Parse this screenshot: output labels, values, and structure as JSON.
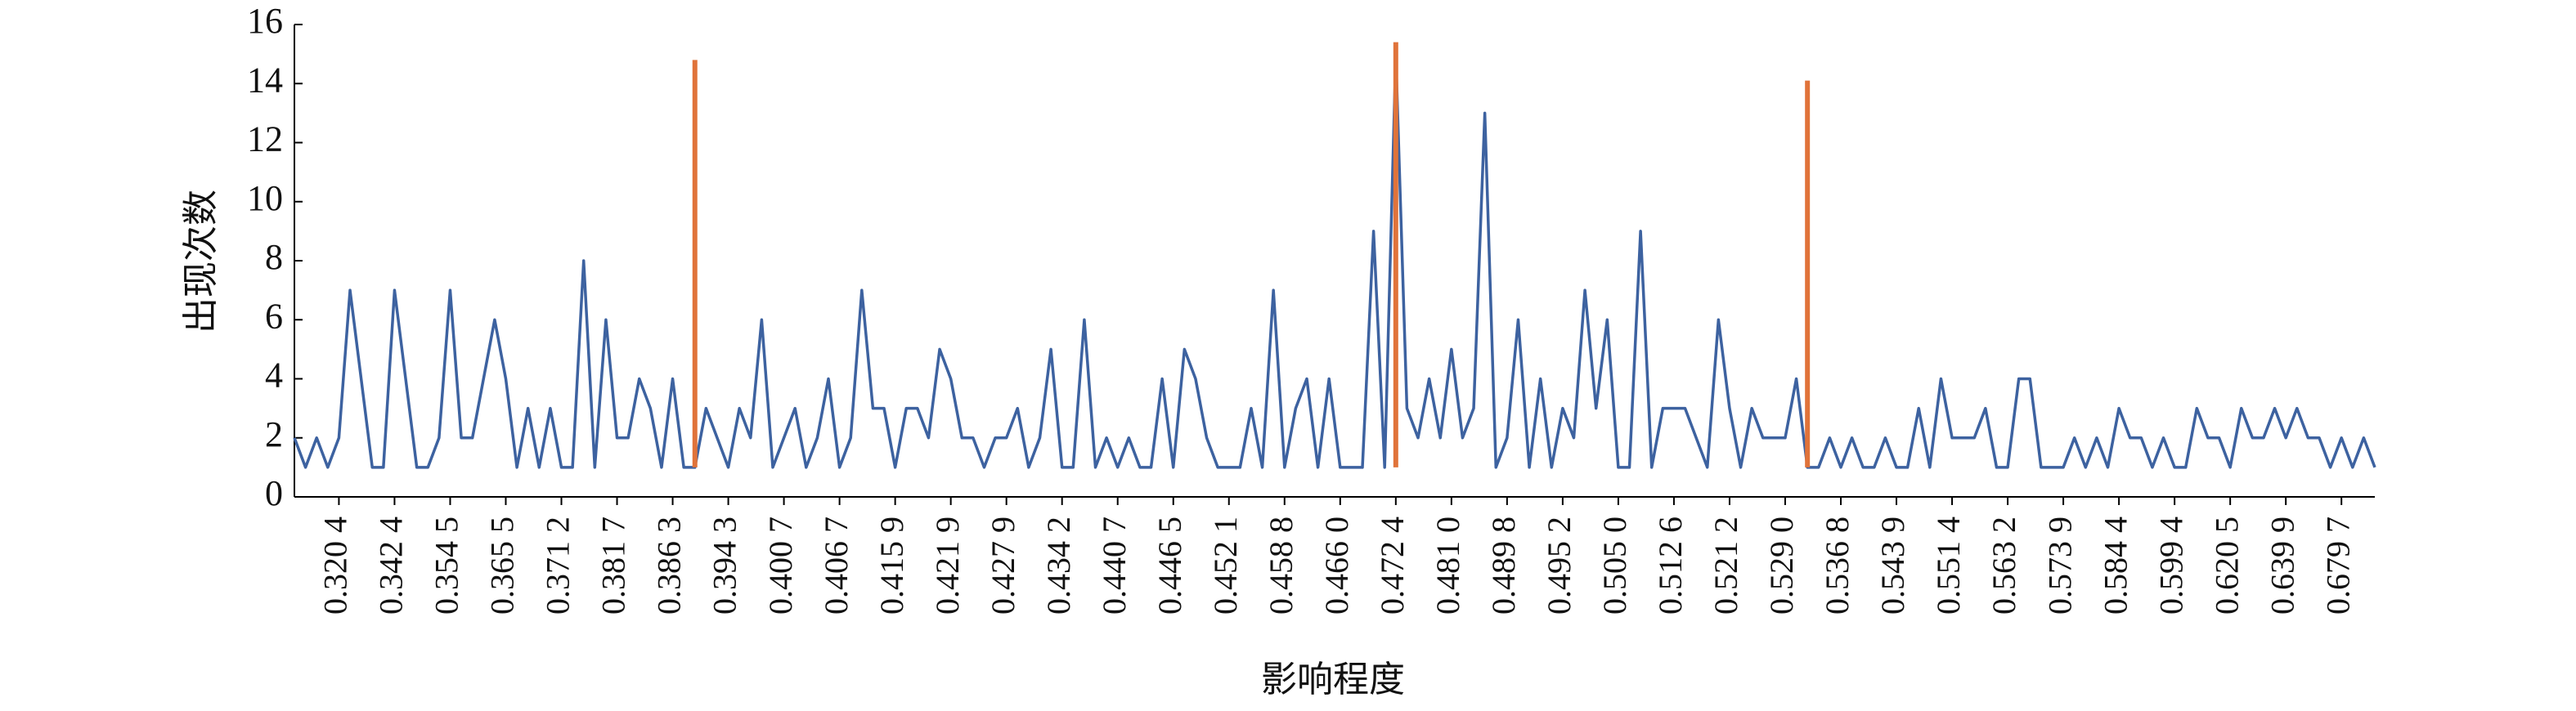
{
  "chart_data": {
    "type": "line",
    "xlabel": "影响程度",
    "ylabel": "出现次数",
    "categories": [
      null,
      null,
      null,
      null,
      "0.320 4",
      null,
      null,
      null,
      null,
      "0.342 4",
      null,
      null,
      null,
      null,
      "0.354 5",
      null,
      null,
      null,
      null,
      "0.365 5",
      null,
      null,
      null,
      null,
      "0.371 2",
      null,
      null,
      null,
      null,
      "0.381 7",
      null,
      null,
      null,
      null,
      "0.386 3",
      null,
      null,
      null,
      null,
      "0.394 3",
      null,
      null,
      null,
      null,
      "0.400 7",
      null,
      null,
      null,
      null,
      "0.406 7",
      null,
      null,
      null,
      null,
      "0.415 9",
      null,
      null,
      null,
      null,
      "0.421 9",
      null,
      null,
      null,
      null,
      "0.427 9",
      null,
      null,
      null,
      null,
      "0.434 2",
      null,
      null,
      null,
      null,
      "0.440 7",
      null,
      null,
      null,
      null,
      "0.446 5",
      null,
      null,
      null,
      null,
      "0.452 1",
      null,
      null,
      null,
      null,
      "0.458 8",
      null,
      null,
      null,
      null,
      "0.466 0",
      null,
      null,
      null,
      null,
      "0.472 4",
      null,
      null,
      null,
      null,
      "0.481 0",
      null,
      null,
      null,
      null,
      "0.489 8",
      null,
      null,
      null,
      null,
      "0.495 2",
      null,
      null,
      null,
      null,
      "0.505 0",
      null,
      null,
      null,
      null,
      "0.512 6",
      null,
      null,
      null,
      null,
      "0.521 2",
      null,
      null,
      null,
      null,
      "0.529 0",
      null,
      null,
      null,
      null,
      "0.536 8",
      null,
      null,
      null,
      null,
      "0.543 9",
      null,
      null,
      null,
      null,
      "0.551 4",
      null,
      null,
      null,
      null,
      "0.563 2",
      null,
      null,
      null,
      null,
      "0.573 9",
      null,
      null,
      null,
      null,
      "0.584 4",
      null,
      null,
      null,
      null,
      "0.599 4",
      null,
      null,
      null,
      null,
      "0.620 5",
      null,
      null,
      null,
      null,
      "0.639 9",
      null,
      null,
      null,
      null,
      "0.679 7",
      null,
      null,
      null
    ],
    "series": [
      {
        "color": "#3d62a0",
        "values": [
          2,
          1,
          2,
          1,
          2,
          7,
          4,
          1,
          1,
          7,
          4,
          1,
          1,
          2,
          7,
          2,
          2,
          4,
          6,
          4,
          1,
          3,
          1,
          3,
          1,
          1,
          8,
          1,
          6,
          2,
          2,
          4,
          3,
          1,
          4,
          1,
          1,
          3,
          2,
          1,
          3,
          2,
          6,
          1,
          2,
          3,
          1,
          2,
          4,
          1,
          2,
          7,
          3,
          3,
          1,
          3,
          3,
          2,
          5,
          4,
          2,
          2,
          1,
          2,
          2,
          3,
          1,
          2,
          5,
          1,
          1,
          6,
          1,
          2,
          1,
          2,
          1,
          1,
          4,
          1,
          5,
          4,
          2,
          1,
          1,
          1,
          3,
          1,
          7,
          1,
          3,
          4,
          1,
          4,
          1,
          1,
          1,
          9,
          1,
          15,
          3,
          2,
          4,
          2,
          5,
          2,
          3,
          13,
          1,
          2,
          6,
          1,
          4,
          1,
          3,
          2,
          7,
          3,
          6,
          1,
          1,
          9,
          1,
          3,
          3,
          3,
          2,
          1,
          6,
          3,
          1,
          3,
          2,
          2,
          2,
          4,
          1,
          1,
          2,
          1,
          2,
          1,
          1,
          2,
          1,
          1,
          3,
          1,
          4,
          2,
          2,
          2,
          3,
          1,
          1,
          4,
          4,
          1,
          1,
          1,
          2,
          1,
          2,
          1,
          3,
          2,
          2,
          1,
          2,
          1,
          1,
          3,
          2,
          2,
          1,
          3,
          2,
          2,
          3,
          2,
          3,
          2,
          2,
          1,
          2,
          1,
          2,
          1
        ]
      }
    ],
    "highlights": [
      {
        "index": 36,
        "from": 1,
        "to": 14.8
      },
      {
        "index": 99,
        "from": 1,
        "to": 15.4
      },
      {
        "index": 136,
        "from": 1,
        "to": 14.1
      }
    ],
    "highlight_color": "#e0733a",
    "ylim": [
      0,
      16
    ],
    "yticks": [
      0,
      2,
      4,
      6,
      8,
      10,
      12,
      14,
      16
    ]
  }
}
